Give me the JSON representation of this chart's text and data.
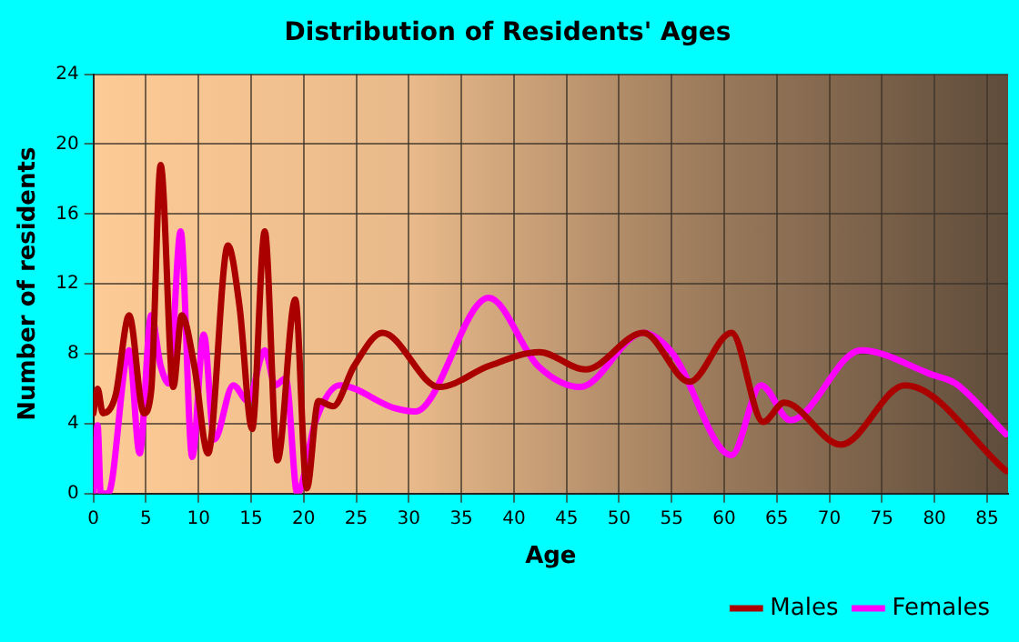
{
  "chart_data": {
    "type": "line",
    "title": "Distribution of Residents' Ages",
    "xlabel": "Age",
    "ylabel": "Number of residents",
    "xlim": [
      0,
      87
    ],
    "xticks": [
      0,
      5,
      10,
      15,
      20,
      25,
      30,
      35,
      40,
      45,
      50,
      55,
      60,
      65,
      70,
      75,
      80,
      85
    ],
    "ylim": [
      0,
      24
    ],
    "yticks": [
      0,
      4,
      8,
      12,
      16,
      20,
      24
    ],
    "grid": true,
    "legend": "bottom right",
    "marker": "none",
    "line_style": "solid",
    "series": [
      {
        "name": "Males",
        "color": "#aa0000",
        "x": [
          0,
          0.4,
          0.9,
          2.1,
          3.4,
          4.8,
          5.5,
          6.4,
          7.6,
          8.4,
          9.6,
          10.9,
          12.8,
          13.9,
          15.1,
          16.3,
          17.5,
          19.2,
          20.3,
          21.4,
          22.8,
          24.8,
          27.5,
          32.9,
          37.6,
          42.4,
          46.8,
          52.3,
          56.7,
          60.7,
          63.7,
          65.7,
          71.1,
          77.2,
          86.8
        ],
        "values": [
          4.6,
          6,
          4.6,
          5.6,
          10.2,
          4.6,
          5.9,
          18.8,
          6.1,
          10.2,
          7.3,
          2.3,
          14.2,
          10.7,
          3.7,
          15,
          1.9,
          11.1,
          0.3,
          5.3,
          5,
          7.3,
          9.2,
          6.1,
          7.3,
          8.1,
          7.1,
          9.2,
          6.4,
          9.2,
          4.1,
          5.2,
          2.8,
          6.2,
          1.3
        ]
      },
      {
        "name": "Females",
        "color": "#ff00ff",
        "x": [
          0,
          0.4,
          0.7,
          1.4,
          3.4,
          4.4,
          5.5,
          6.4,
          7.2,
          8.3,
          9.4,
          10.5,
          11.5,
          13.3,
          14.7,
          16.3,
          17.3,
          18.3,
          19.4,
          21.1,
          23.4,
          28.6,
          30.6,
          37.6,
          42.3,
          46.3,
          52.3,
          55,
          60.7,
          63.5,
          66.3,
          73,
          79.8,
          82,
          86.8
        ],
        "values": [
          0,
          3.9,
          0,
          0,
          8.2,
          2.3,
          10.2,
          7.3,
          6.3,
          15,
          2.1,
          9.1,
          3.1,
          6.2,
          5.3,
          8.2,
          6.2,
          6.6,
          0,
          4.1,
          6.2,
          4.9,
          4.7,
          11.2,
          7.3,
          6.1,
          9.2,
          8.1,
          2.2,
          6.2,
          4.2,
          8.2,
          6.8,
          6.3,
          3.4
        ]
      }
    ]
  }
}
